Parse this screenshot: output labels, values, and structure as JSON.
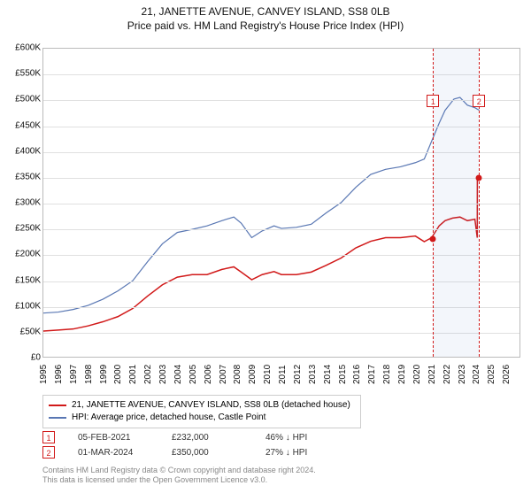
{
  "title_line1": "21, JANETTE AVENUE, CANVEY ISLAND, SS8 0LB",
  "title_line2": "Price paid vs. HM Land Registry's House Price Index (HPI)",
  "chart": {
    "type": "line",
    "background_color": "#ffffff",
    "grid_color": "#e0e0e0",
    "border_color": "#bbbbbb",
    "y": {
      "min": 0,
      "max": 600000,
      "step": 50000,
      "prefix": "£",
      "suffix": "K",
      "divisor": 1000,
      "label_fontsize": 10
    },
    "x": {
      "min": 1995,
      "max": 2027,
      "ticks": [
        1995,
        1996,
        1997,
        1998,
        1999,
        2000,
        2001,
        2002,
        2003,
        2004,
        2005,
        2006,
        2007,
        2008,
        2009,
        2010,
        2011,
        2012,
        2013,
        2014,
        2015,
        2016,
        2017,
        2018,
        2019,
        2020,
        2021,
        2022,
        2023,
        2024,
        2025,
        2026
      ],
      "label_fontsize": 10
    },
    "series": [
      {
        "name": "price_paid",
        "label": "21, JANETTE AVENUE, CANVEY ISLAND, SS8 0LB (detached house)",
        "color": "#d11919",
        "line_width": 1.5,
        "xy": [
          [
            1995.0,
            50000
          ],
          [
            1996.0,
            52000
          ],
          [
            1997.0,
            54000
          ],
          [
            1998.0,
            60000
          ],
          [
            1999.0,
            68000
          ],
          [
            2000.0,
            78000
          ],
          [
            2001.0,
            94000
          ],
          [
            2002.0,
            118000
          ],
          [
            2003.0,
            140000
          ],
          [
            2004.0,
            155000
          ],
          [
            2005.0,
            160000
          ],
          [
            2006.0,
            160000
          ],
          [
            2007.0,
            170000
          ],
          [
            2007.8,
            175000
          ],
          [
            2008.3,
            165000
          ],
          [
            2009.0,
            150000
          ],
          [
            2009.7,
            160000
          ],
          [
            2010.5,
            166000
          ],
          [
            2011.0,
            160000
          ],
          [
            2012.0,
            160000
          ],
          [
            2013.0,
            165000
          ],
          [
            2014.0,
            178000
          ],
          [
            2015.0,
            192000
          ],
          [
            2016.0,
            212000
          ],
          [
            2017.0,
            225000
          ],
          [
            2018.0,
            232000
          ],
          [
            2019.0,
            232000
          ],
          [
            2020.0,
            235000
          ],
          [
            2020.6,
            224000
          ],
          [
            2021.1,
            232000
          ],
          [
            2021.6,
            255000
          ],
          [
            2022.0,
            265000
          ],
          [
            2022.5,
            270000
          ],
          [
            2023.0,
            272000
          ],
          [
            2023.5,
            265000
          ],
          [
            2024.0,
            268000
          ],
          [
            2024.16,
            232000
          ],
          [
            2024.17,
            350000
          ]
        ]
      },
      {
        "name": "hpi",
        "label": "HPI: Average price, detached house, Castle Point",
        "color": "#5977b3",
        "line_width": 1.2,
        "xy": [
          [
            1995.0,
            85000
          ],
          [
            1996.0,
            87000
          ],
          [
            1997.0,
            92000
          ],
          [
            1998.0,
            100000
          ],
          [
            1999.0,
            112000
          ],
          [
            2000.0,
            128000
          ],
          [
            2001.0,
            148000
          ],
          [
            2002.0,
            185000
          ],
          [
            2003.0,
            220000
          ],
          [
            2004.0,
            242000
          ],
          [
            2005.0,
            248000
          ],
          [
            2006.0,
            255000
          ],
          [
            2007.0,
            265000
          ],
          [
            2007.8,
            272000
          ],
          [
            2008.3,
            260000
          ],
          [
            2009.0,
            232000
          ],
          [
            2009.7,
            245000
          ],
          [
            2010.5,
            255000
          ],
          [
            2011.0,
            250000
          ],
          [
            2012.0,
            252000
          ],
          [
            2013.0,
            258000
          ],
          [
            2014.0,
            280000
          ],
          [
            2015.0,
            300000
          ],
          [
            2016.0,
            330000
          ],
          [
            2017.0,
            355000
          ],
          [
            2018.0,
            365000
          ],
          [
            2019.0,
            370000
          ],
          [
            2020.0,
            378000
          ],
          [
            2020.6,
            385000
          ],
          [
            2021.1,
            420000
          ],
          [
            2021.6,
            455000
          ],
          [
            2022.0,
            480000
          ],
          [
            2022.6,
            502000
          ],
          [
            2023.0,
            505000
          ],
          [
            2023.5,
            490000
          ],
          [
            2024.0,
            485000
          ],
          [
            2024.3,
            480000
          ]
        ]
      }
    ],
    "shaded_span": {
      "from": 2021.1,
      "to": 2024.17
    },
    "sale_markers": [
      {
        "n": "1",
        "date": "05-FEB-2021",
        "price_text": "£232,000",
        "change_text": "46% ↓ HPI",
        "x": 2021.1,
        "y": 232000,
        "color": "#d11919"
      },
      {
        "n": "2",
        "date": "01-MAR-2024",
        "price_text": "£350,000",
        "change_text": "27% ↓ HPI",
        "x": 2024.17,
        "y": 350000,
        "color": "#d11919"
      }
    ]
  },
  "legend_border": "#cccccc",
  "footer_line1": "Contains HM Land Registry data © Crown copyright and database right 2024.",
  "footer_line2": "This data is licensed under the Open Government Licence v3.0."
}
